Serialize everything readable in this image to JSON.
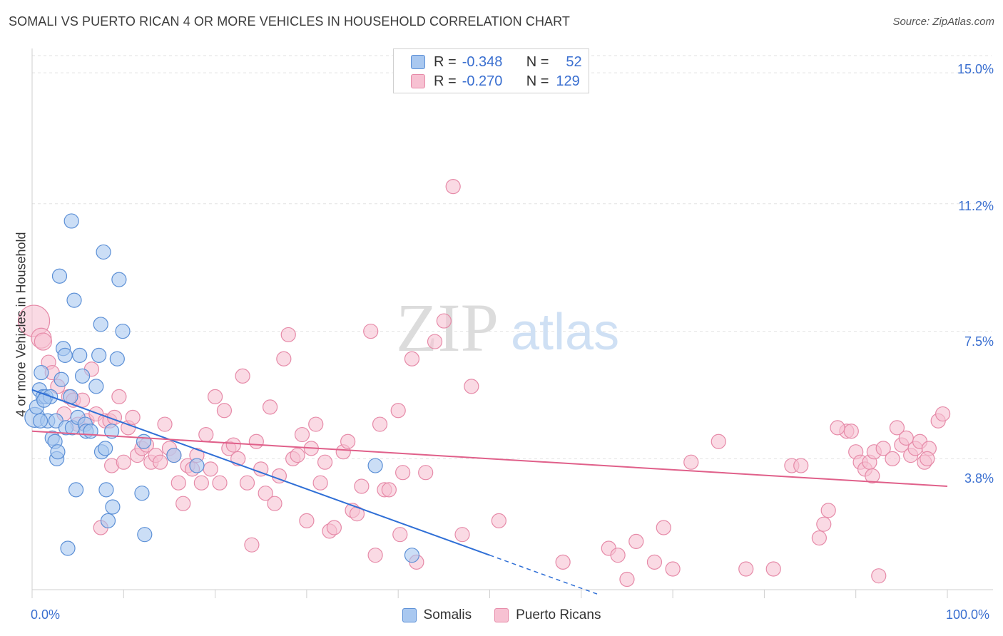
{
  "title": "SOMALI VS PUERTO RICAN 4 OR MORE VEHICLES IN HOUSEHOLD CORRELATION CHART",
  "source": "Source: ZipAtlas.com",
  "watermark": {
    "zip": "ZIP",
    "atlas": "atlas"
  },
  "legend_top": {
    "rows": [
      {
        "r_label": "R =",
        "r_value": "-0.348",
        "n_label": "N =",
        "n_value": "52"
      },
      {
        "r_label": "R =",
        "r_value": "-0.270",
        "n_label": "N =",
        "n_value": "129"
      }
    ]
  },
  "legend_bottom": {
    "series1": "Somalis",
    "series2": "Puerto Ricans"
  },
  "colors": {
    "blue_fill": "#a9c8f0",
    "blue_stroke": "#5b8fd6",
    "blue_line": "#2f6fd6",
    "pink_fill": "#f7c1d2",
    "pink_stroke": "#e68aa8",
    "pink_line": "#e0608a",
    "tick_text": "#3a6fd0"
  },
  "chart_data": {
    "type": "scatter",
    "title": "SOMALI VS PUERTO RICAN 4 OR MORE VEHICLES IN HOUSEHOLD CORRELATION CHART",
    "xlabel": "",
    "ylabel": "4 or more Vehicles in Household",
    "xlim": [
      0,
      100
    ],
    "ylim": [
      0,
      15.5
    ],
    "x_tick_labels": [
      "0.0%",
      "100.0%"
    ],
    "y_ticks": [
      3.8,
      7.5,
      11.2,
      15.0
    ],
    "y_tick_labels": [
      "3.8%",
      "7.5%",
      "11.2%",
      "15.0%"
    ],
    "grid": true,
    "series": [
      {
        "name": "Somalis",
        "r": -0.348,
        "n": 52,
        "trend": {
          "x0": 0,
          "y0": 5.8,
          "x1": 50,
          "y1": 1.0,
          "dashed_to_x": 62
        },
        "points": [
          [
            0.3,
            5.0,
            14
          ],
          [
            0.5,
            5.3,
            10
          ],
          [
            0.8,
            5.8,
            10
          ],
          [
            1.0,
            6.3,
            10
          ],
          [
            1.2,
            5.6,
            10
          ],
          [
            1.5,
            5.6,
            10
          ],
          [
            1.7,
            4.9,
            10
          ],
          [
            2.0,
            5.6,
            10
          ],
          [
            2.2,
            4.4,
            10
          ],
          [
            2.5,
            4.3,
            10
          ],
          [
            2.6,
            4.9,
            10
          ],
          [
            2.7,
            3.8,
            10
          ],
          [
            2.8,
            4.0,
            10
          ],
          [
            3.0,
            9.1,
            10
          ],
          [
            3.2,
            6.1,
            10
          ],
          [
            3.4,
            7.0,
            10
          ],
          [
            3.6,
            6.8,
            10
          ],
          [
            3.7,
            4.7,
            10
          ],
          [
            3.9,
            1.2,
            10
          ],
          [
            4.2,
            5.6,
            10
          ],
          [
            4.3,
            10.7,
            10
          ],
          [
            4.4,
            4.7,
            10
          ],
          [
            4.6,
            8.4,
            10
          ],
          [
            4.8,
            2.9,
            10
          ],
          [
            5.0,
            5.0,
            10
          ],
          [
            5.2,
            6.8,
            10
          ],
          [
            5.5,
            6.2,
            10
          ],
          [
            5.8,
            4.8,
            10
          ],
          [
            5.9,
            4.6,
            10
          ],
          [
            6.4,
            4.6,
            10
          ],
          [
            7.0,
            5.9,
            10
          ],
          [
            7.3,
            6.8,
            10
          ],
          [
            7.5,
            7.7,
            10
          ],
          [
            7.6,
            4.0,
            10
          ],
          [
            7.8,
            9.8,
            10
          ],
          [
            8.0,
            4.1,
            10
          ],
          [
            8.1,
            2.9,
            10
          ],
          [
            8.3,
            2.0,
            10
          ],
          [
            8.7,
            4.6,
            10
          ],
          [
            8.8,
            2.4,
            10
          ],
          [
            9.3,
            6.7,
            10
          ],
          [
            9.5,
            9.0,
            10
          ],
          [
            9.9,
            7.5,
            10
          ],
          [
            12.0,
            2.8,
            10
          ],
          [
            12.3,
            1.6,
            10
          ],
          [
            12.2,
            4.3,
            10
          ],
          [
            15.5,
            3.9,
            10
          ],
          [
            18.0,
            3.6,
            10
          ],
          [
            37.5,
            3.6,
            10
          ],
          [
            41.5,
            1.0,
            10
          ],
          [
            1.3,
            5.5,
            10
          ],
          [
            0.9,
            4.9,
            10
          ]
        ]
      },
      {
        "name": "Puerto Ricans",
        "r": -0.27,
        "n": 129,
        "trend": {
          "x0": 0,
          "y0": 4.6,
          "x1": 100,
          "y1": 3.0
        },
        "points": [
          [
            0.2,
            7.8,
            22
          ],
          [
            1.0,
            7.3,
            14
          ],
          [
            1.2,
            7.2,
            12
          ],
          [
            1.8,
            6.6,
            10
          ],
          [
            2.2,
            6.3,
            10
          ],
          [
            2.8,
            5.9,
            10
          ],
          [
            3.5,
            5.1,
            10
          ],
          [
            4.0,
            5.6,
            10
          ],
          [
            4.5,
            5.5,
            10
          ],
          [
            5.0,
            4.8,
            10
          ],
          [
            5.5,
            5.5,
            10
          ],
          [
            6.0,
            4.9,
            10
          ],
          [
            6.5,
            6.4,
            10
          ],
          [
            7.0,
            5.1,
            10
          ],
          [
            7.5,
            1.8,
            10
          ],
          [
            8.0,
            4.9,
            10
          ],
          [
            8.5,
            4.9,
            10
          ],
          [
            8.7,
            3.6,
            10
          ],
          [
            9.0,
            5.0,
            10
          ],
          [
            9.5,
            5.6,
            10
          ],
          [
            10.0,
            3.7,
            10
          ],
          [
            10.5,
            4.7,
            10
          ],
          [
            11.0,
            5.0,
            10
          ],
          [
            11.5,
            3.9,
            10
          ],
          [
            12.0,
            4.1,
            10
          ],
          [
            12.5,
            4.2,
            10
          ],
          [
            13.0,
            3.7,
            10
          ],
          [
            13.5,
            3.9,
            10
          ],
          [
            14.0,
            3.7,
            10
          ],
          [
            14.5,
            4.8,
            10
          ],
          [
            15.0,
            4.1,
            10
          ],
          [
            15.5,
            3.9,
            10
          ],
          [
            16.0,
            3.1,
            10
          ],
          [
            16.5,
            2.5,
            10
          ],
          [
            17.0,
            3.6,
            10
          ],
          [
            17.5,
            3.5,
            10
          ],
          [
            18.0,
            3.9,
            10
          ],
          [
            18.5,
            3.1,
            10
          ],
          [
            19.0,
            4.5,
            10
          ],
          [
            19.5,
            3.5,
            10
          ],
          [
            20.0,
            5.6,
            10
          ],
          [
            20.5,
            3.1,
            10
          ],
          [
            21.0,
            5.2,
            10
          ],
          [
            21.5,
            4.1,
            10
          ],
          [
            22.0,
            4.2,
            10
          ],
          [
            22.5,
            3.8,
            10
          ],
          [
            23.0,
            6.2,
            10
          ],
          [
            23.5,
            3.1,
            10
          ],
          [
            24.0,
            1.3,
            10
          ],
          [
            24.5,
            4.3,
            10
          ],
          [
            25.0,
            3.5,
            10
          ],
          [
            25.5,
            2.8,
            10
          ],
          [
            26.0,
            5.3,
            10
          ],
          [
            26.5,
            2.5,
            10
          ],
          [
            27.0,
            3.3,
            10
          ],
          [
            27.5,
            6.7,
            10
          ],
          [
            28.0,
            7.4,
            10
          ],
          [
            28.5,
            3.8,
            10
          ],
          [
            29.0,
            3.9,
            10
          ],
          [
            29.5,
            4.5,
            10
          ],
          [
            30.0,
            2.0,
            10
          ],
          [
            30.5,
            4.1,
            10
          ],
          [
            31.0,
            4.8,
            10
          ],
          [
            31.5,
            3.1,
            10
          ],
          [
            32.0,
            3.7,
            10
          ],
          [
            32.5,
            1.7,
            10
          ],
          [
            33.0,
            1.8,
            10
          ],
          [
            34.0,
            4.0,
            10
          ],
          [
            34.5,
            4.3,
            10
          ],
          [
            35.0,
            2.3,
            10
          ],
          [
            35.5,
            2.2,
            10
          ],
          [
            36.0,
            3.0,
            10
          ],
          [
            37.0,
            7.5,
            10
          ],
          [
            37.5,
            1.0,
            10
          ],
          [
            38.0,
            4.8,
            10
          ],
          [
            38.5,
            2.9,
            10
          ],
          [
            39.0,
            2.9,
            10
          ],
          [
            40.0,
            5.2,
            10
          ],
          [
            40.2,
            1.6,
            10
          ],
          [
            40.5,
            3.4,
            10
          ],
          [
            41.5,
            6.7,
            10
          ],
          [
            42.0,
            0.8,
            10
          ],
          [
            43.0,
            3.4,
            10
          ],
          [
            44.0,
            7.2,
            10
          ],
          [
            45.0,
            7.8,
            10
          ],
          [
            46.0,
            11.7,
            10
          ],
          [
            47.0,
            1.6,
            10
          ],
          [
            48.0,
            5.9,
            10
          ],
          [
            51.0,
            2.0,
            10
          ],
          [
            58.0,
            0.8,
            10
          ],
          [
            63.0,
            1.2,
            10
          ],
          [
            64.0,
            1.0,
            10
          ],
          [
            65.0,
            0.3,
            10
          ],
          [
            66.0,
            1.4,
            10
          ],
          [
            68.0,
            0.8,
            10
          ],
          [
            69.0,
            1.8,
            10
          ],
          [
            70.0,
            0.6,
            10
          ],
          [
            72.0,
            3.7,
            10
          ],
          [
            75.0,
            4.3,
            10
          ],
          [
            81.0,
            0.6,
            10
          ],
          [
            83.0,
            3.6,
            10
          ],
          [
            86.0,
            1.5,
            10
          ],
          [
            86.5,
            1.9,
            10
          ],
          [
            87.0,
            2.3,
            10
          ],
          [
            89.0,
            4.6,
            10
          ],
          [
            89.5,
            4.6,
            10
          ],
          [
            90.0,
            4.0,
            10
          ],
          [
            90.5,
            3.7,
            10
          ],
          [
            91.0,
            3.5,
            10
          ],
          [
            91.5,
            3.7,
            10
          ],
          [
            92.0,
            4.0,
            10
          ],
          [
            93.0,
            4.1,
            10
          ],
          [
            94.0,
            3.8,
            10
          ],
          [
            94.5,
            4.7,
            10
          ],
          [
            95.0,
            4.2,
            10
          ],
          [
            96.0,
            3.9,
            10
          ],
          [
            96.5,
            4.1,
            10
          ],
          [
            97.0,
            4.3,
            10
          ],
          [
            97.5,
            3.7,
            10
          ],
          [
            98.0,
            4.1,
            10
          ],
          [
            99.0,
            4.9,
            10
          ],
          [
            99.5,
            5.1,
            10
          ],
          [
            92.5,
            0.4,
            10
          ],
          [
            88.0,
            4.7,
            10
          ],
          [
            91.8,
            3.3,
            10
          ],
          [
            95.5,
            4.4,
            10
          ],
          [
            97.8,
            3.8,
            10
          ],
          [
            84.0,
            3.6,
            10
          ],
          [
            78.0,
            0.6,
            10
          ]
        ]
      }
    ]
  }
}
